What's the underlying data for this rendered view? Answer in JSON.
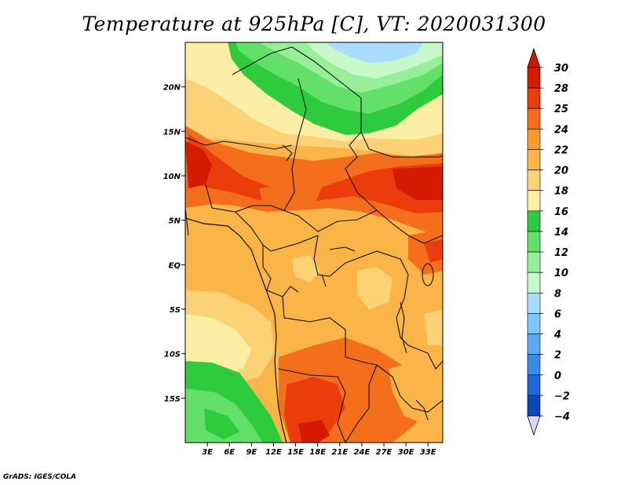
{
  "title": "Temperature at 925hPa [C], VT: 2020031300",
  "credit": "GrADS: IGES/COLA",
  "map": {
    "lon_range": [
      0,
      35
    ],
    "lat_range": [
      -20,
      25
    ],
    "lat_ticks": [
      {
        "value": 20,
        "label": "20N"
      },
      {
        "value": 15,
        "label": "15N"
      },
      {
        "value": 10,
        "label": "10N"
      },
      {
        "value": 5,
        "label": "5N"
      },
      {
        "value": 0,
        "label": "EQ"
      },
      {
        "value": -5,
        "label": "5S"
      },
      {
        "value": -10,
        "label": "10S"
      },
      {
        "value": -15,
        "label": "15S"
      }
    ],
    "lon_ticks": [
      {
        "value": 3,
        "label": "3E"
      },
      {
        "value": 6,
        "label": "6E"
      },
      {
        "value": 9,
        "label": "9E"
      },
      {
        "value": 12,
        "label": "12E"
      },
      {
        "value": 15,
        "label": "15E"
      },
      {
        "value": 18,
        "label": "18E"
      },
      {
        "value": 21,
        "label": "21E"
      },
      {
        "value": 24,
        "label": "24E"
      },
      {
        "value": 27,
        "label": "27E"
      },
      {
        "value": 30,
        "label": "30E"
      },
      {
        "value": 33,
        "label": "33E"
      }
    ]
  },
  "colorbar": {
    "levels": [
      "30",
      "28",
      "25",
      "24",
      "22",
      "20",
      "18",
      "16",
      "14",
      "12",
      "10",
      "8",
      "6",
      "4",
      "2",
      "0",
      "-2",
      "-4"
    ],
    "colors": [
      "#d41a00",
      "#ea3d0b",
      "#f46e1c",
      "#f89a2a",
      "#fbb448",
      "#fdd276",
      "#fdeea6",
      "#2ecb3e",
      "#62e06a",
      "#98ef9a",
      "#c8f7cc",
      "#a9dcff",
      "#82c6ff",
      "#5ea9f3",
      "#3d8ae6",
      "#1d67d6",
      "#0f46b6",
      "#08208a"
    ],
    "top_arrow_color": "#c81800",
    "bottom_arrow_color": "#dcd8f4"
  }
}
